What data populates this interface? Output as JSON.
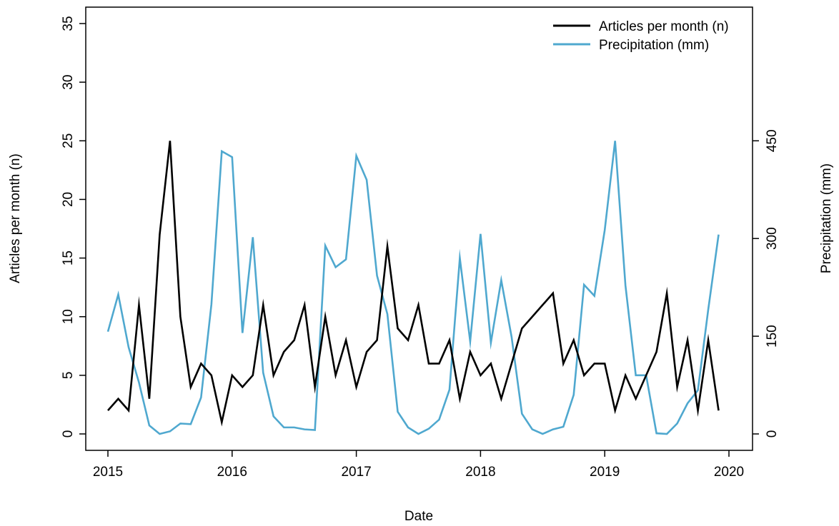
{
  "chart_data": {
    "type": "line",
    "xlabel": "Date",
    "ylabel": "Articles per month (n)",
    "ylabel_right": "Precipitation (mm)",
    "xlim": [
      2015,
      2020
    ],
    "ylim": [
      0,
      35
    ],
    "ylim_right": [
      0,
      630
    ],
    "x_ticks": [
      2015,
      2016,
      2017,
      2018,
      2019,
      2020
    ],
    "y_ticks": [
      0,
      5,
      10,
      15,
      20,
      25,
      30,
      35
    ],
    "y_ticks_right": [
      0,
      150,
      300,
      450
    ],
    "grid": false,
    "legend": "top-right",
    "series": [
      {
        "name": "Articles per month (n)",
        "axis": "left",
        "color": "#000000",
        "x": [
          "2015-01",
          "2015-02",
          "2015-03",
          "2015-04",
          "2015-05",
          "2015-06",
          "2015-07",
          "2015-08",
          "2015-09",
          "2015-10",
          "2015-11",
          "2015-12",
          "2016-01",
          "2016-02",
          "2016-03",
          "2016-04",
          "2016-05",
          "2016-06",
          "2016-07",
          "2016-08",
          "2016-09",
          "2016-10",
          "2016-11",
          "2016-12",
          "2017-01",
          "2017-02",
          "2017-03",
          "2017-04",
          "2017-05",
          "2017-06",
          "2017-07",
          "2017-08",
          "2017-09",
          "2017-10",
          "2017-11",
          "2017-12",
          "2018-01",
          "2018-02",
          "2018-03",
          "2018-04",
          "2018-05",
          "2018-06",
          "2018-07",
          "2018-08",
          "2018-09",
          "2018-10",
          "2018-11",
          "2018-12",
          "2019-01",
          "2019-02",
          "2019-03",
          "2019-04",
          "2019-05",
          "2019-06",
          "2019-07",
          "2019-08",
          "2019-09",
          "2019-10",
          "2019-11",
          "2019-12"
        ],
        "values": [
          2,
          3,
          2,
          11,
          3,
          17,
          25,
          10,
          4,
          6,
          5,
          1,
          5,
          4,
          5,
          11,
          5,
          7,
          8,
          11,
          4,
          10,
          5,
          8,
          4,
          7,
          8,
          16,
          9,
          8,
          11,
          6,
          6,
          8,
          3,
          7,
          5,
          6,
          3,
          6,
          9,
          10,
          11,
          12,
          6,
          8,
          5,
          6,
          6,
          2,
          5,
          3,
          5,
          7,
          12,
          4,
          8,
          2,
          8,
          2
        ]
      },
      {
        "name": "Precipitation (mm)",
        "axis": "right",
        "color": "#4fa8cf",
        "x": [
          "2015-01",
          "2015-02",
          "2015-03",
          "2015-04",
          "2015-05",
          "2015-06",
          "2015-07",
          "2015-08",
          "2015-09",
          "2015-10",
          "2015-11",
          "2015-12",
          "2016-01",
          "2016-02",
          "2016-03",
          "2016-04",
          "2016-05",
          "2016-06",
          "2016-07",
          "2016-08",
          "2016-09",
          "2016-10",
          "2016-11",
          "2016-12",
          "2017-01",
          "2017-02",
          "2017-03",
          "2017-04",
          "2017-05",
          "2017-06",
          "2017-07",
          "2017-08",
          "2017-09",
          "2017-10",
          "2017-11",
          "2017-12",
          "2018-01",
          "2018-02",
          "2018-03",
          "2018-04",
          "2018-05",
          "2018-06",
          "2018-07",
          "2018-08",
          "2018-09",
          "2018-10",
          "2018-11",
          "2018-12",
          "2019-01",
          "2019-02",
          "2019-03",
          "2019-04",
          "2019-05",
          "2019-06",
          "2019-07",
          "2019-08",
          "2019-09",
          "2019-10",
          "2019-11",
          "2019-12"
        ],
        "values": [
          157,
          214,
          133,
          79,
          13,
          0,
          4,
          16,
          15,
          56,
          199,
          434,
          425,
          155,
          302,
          94,
          27,
          10,
          10,
          7,
          6,
          289,
          256,
          268,
          427,
          390,
          243,
          184,
          34,
          10,
          0,
          8,
          22,
          68,
          270,
          142,
          307,
          140,
          236,
          149,
          31,
          7,
          0,
          7,
          11,
          60,
          229,
          212,
          313,
          450,
          228,
          90,
          90,
          1,
          0,
          16,
          47,
          67,
          191,
          306
        ]
      }
    ]
  }
}
